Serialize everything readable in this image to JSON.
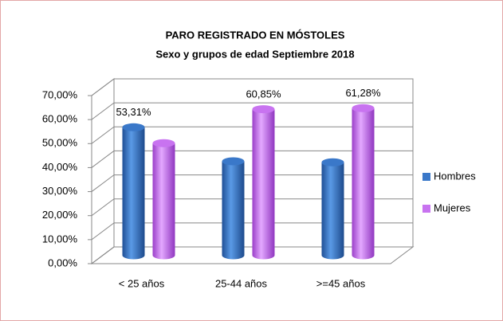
{
  "chart_data": {
    "type": "bar3d",
    "title": "PARO REGISTRADO EN MÓSTOLES",
    "subtitle": "Sexo y grupos de edad Septiembre 2018",
    "categories": [
      "< 25 años",
      "25-44 años",
      ">=45 años"
    ],
    "series": [
      {
        "name": "Hombres",
        "color": "#3a78c9",
        "values": [
          53.31,
          39.15,
          38.72
        ],
        "value_labels": [
          "53,31%",
          null,
          null
        ]
      },
      {
        "name": "Mujeres",
        "color": "#c873f0",
        "values": [
          46.69,
          60.85,
          61.28
        ],
        "value_labels": [
          null,
          "60,85%",
          "61,28%"
        ]
      }
    ],
    "ylim": [
      0,
      70
    ],
    "yticks": [
      {
        "value": 0,
        "label": "0,00%"
      },
      {
        "value": 10,
        "label": "10,00%"
      },
      {
        "value": 20,
        "label": "20,00%"
      },
      {
        "value": 30,
        "label": "30,00%"
      },
      {
        "value": 40,
        "label": "40,00%"
      },
      {
        "value": 50,
        "label": "50,00%"
      },
      {
        "value": 60,
        "label": "60,00%"
      },
      {
        "value": 70,
        "label": "70,00%"
      }
    ],
    "grid": true,
    "legend": "right"
  }
}
